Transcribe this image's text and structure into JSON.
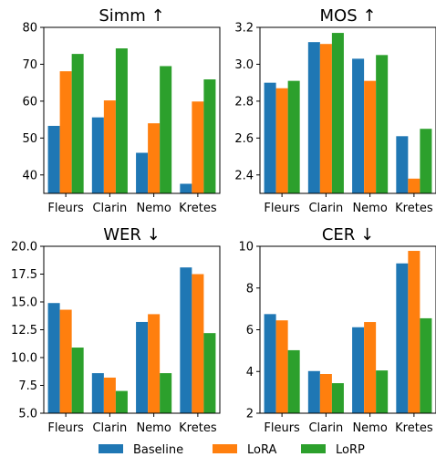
{
  "colors": {
    "Baseline": "#1f77b4",
    "LoRA": "#ff7f0e",
    "LoRP": "#2ca02c"
  },
  "legend": {
    "placement": "bottom-center",
    "items": [
      "Baseline",
      "LoRA",
      "LoRP"
    ]
  },
  "chart_data": [
    {
      "type": "bar",
      "title": "Simm ↑",
      "categories": [
        "Fleurs",
        "Clarin",
        "Nemo",
        "Kretes"
      ],
      "ylim": [
        35,
        80
      ],
      "ybase": 35,
      "yticks": [
        40,
        50,
        60,
        70,
        80
      ],
      "tick_decimals": 0,
      "grid": false,
      "series": [
        {
          "name": "Baseline",
          "values": [
            53.3,
            55.6,
            46.0,
            37.6
          ]
        },
        {
          "name": "LoRA",
          "values": [
            68.1,
            60.2,
            54.0,
            59.9
          ]
        },
        {
          "name": "LoRP",
          "values": [
            72.8,
            74.3,
            69.5,
            65.9
          ]
        }
      ]
    },
    {
      "type": "bar",
      "title": "MOS ↑",
      "categories": [
        "Fleurs",
        "Clarin",
        "Nemo",
        "Kretes"
      ],
      "ylim": [
        2.3,
        3.2
      ],
      "ybase": 2.3,
      "yticks": [
        2.4,
        2.6,
        2.8,
        3.0,
        3.2
      ],
      "tick_decimals": 1,
      "grid": false,
      "series": [
        {
          "name": "Baseline",
          "values": [
            2.9,
            3.12,
            3.03,
            2.61
          ]
        },
        {
          "name": "LoRA",
          "values": [
            2.87,
            3.11,
            2.91,
            2.38
          ]
        },
        {
          "name": "LoRP",
          "values": [
            2.91,
            3.17,
            3.05,
            2.65
          ]
        }
      ]
    },
    {
      "type": "bar",
      "title": "WER ↓",
      "categories": [
        "Fleurs",
        "Clarin",
        "Nemo",
        "Kretes"
      ],
      "ylim": [
        5.0,
        20.0
      ],
      "ybase": 5.0,
      "yticks": [
        5.0,
        7.5,
        10.0,
        12.5,
        15.0,
        17.5,
        20.0
      ],
      "tick_decimals": 1,
      "grid": false,
      "series": [
        {
          "name": "Baseline",
          "values": [
            14.9,
            8.6,
            13.2,
            18.1
          ]
        },
        {
          "name": "LoRA",
          "values": [
            14.3,
            8.2,
            13.9,
            17.5
          ]
        },
        {
          "name": "LoRP",
          "values": [
            10.9,
            7.0,
            8.6,
            12.2
          ]
        }
      ]
    },
    {
      "type": "bar",
      "title": "CER ↓",
      "categories": [
        "Fleurs",
        "Clarin",
        "Nemo",
        "Kretes"
      ],
      "ylim": [
        2,
        10
      ],
      "ybase": 2,
      "yticks": [
        2,
        4,
        6,
        8,
        10
      ],
      "tick_decimals": 0,
      "grid": false,
      "series": [
        {
          "name": "Baseline",
          "values": [
            6.75,
            4.02,
            6.12,
            9.18
          ]
        },
        {
          "name": "LoRA",
          "values": [
            6.45,
            3.88,
            6.37,
            9.78
          ]
        },
        {
          "name": "LoRP",
          "values": [
            5.02,
            3.44,
            4.05,
            6.55
          ]
        }
      ]
    }
  ]
}
